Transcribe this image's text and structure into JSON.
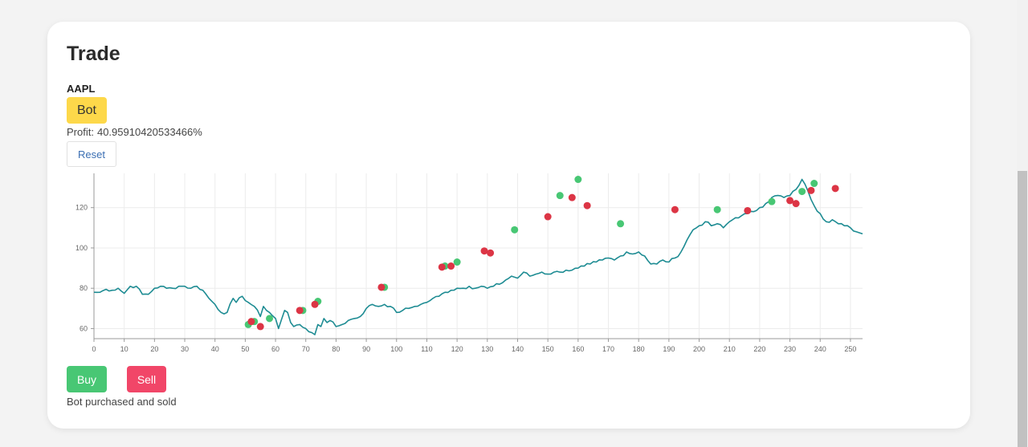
{
  "card": {
    "title": "Trade",
    "ticker": "AAPL",
    "badge_label": "Bot",
    "profit_label": "Profit:",
    "profit_value": "40.95910420533466%",
    "reset_label": "Reset",
    "buy_label": "Buy",
    "sell_label": "Sell",
    "status_text": "Bot purchased and sold"
  },
  "colors": {
    "line": "#1e8c93",
    "buy_marker": "#48c774",
    "sell_marker": "#dc3545",
    "badge": "#fdd84a",
    "buy_button": "#48c774",
    "sell_button": "#f14668"
  },
  "chart_data": {
    "type": "line",
    "xlim": [
      0,
      254
    ],
    "ylim": [
      55,
      137
    ],
    "x_ticks": [
      0,
      10,
      20,
      30,
      40,
      50,
      60,
      70,
      80,
      90,
      100,
      110,
      120,
      130,
      140,
      150,
      160,
      170,
      180,
      190,
      200,
      210,
      220,
      230,
      240,
      250
    ],
    "y_ticks": [
      60,
      80,
      100,
      120
    ],
    "grid": true,
    "anchors": [
      [
        0,
        78
      ],
      [
        2,
        78
      ],
      [
        4,
        79.5
      ],
      [
        6,
        79
      ],
      [
        8,
        80
      ],
      [
        10,
        77.5
      ],
      [
        12,
        81
      ],
      [
        14,
        81
      ],
      [
        16,
        77
      ],
      [
        18,
        77
      ],
      [
        20,
        80
      ],
      [
        22,
        81
      ],
      [
        24,
        80
      ],
      [
        26,
        80
      ],
      [
        28,
        81
      ],
      [
        30,
        81
      ],
      [
        32,
        80
      ],
      [
        34,
        81
      ],
      [
        36,
        79
      ],
      [
        38,
        75
      ],
      [
        40,
        72
      ],
      [
        42,
        68
      ],
      [
        44,
        68
      ],
      [
        46,
        75
      ],
      [
        47,
        73
      ],
      [
        49,
        76
      ],
      [
        51,
        73
      ],
      [
        53,
        71
      ],
      [
        55,
        66
      ],
      [
        56,
        71
      ],
      [
        58,
        68
      ],
      [
        60,
        65
      ],
      [
        61,
        60
      ],
      [
        63,
        69
      ],
      [
        64,
        68
      ],
      [
        65,
        63
      ],
      [
        66,
        61
      ],
      [
        68,
        62
      ],
      [
        70,
        60
      ],
      [
        72,
        58
      ],
      [
        73,
        57
      ],
      [
        74,
        62
      ],
      [
        75,
        61
      ],
      [
        76,
        65
      ],
      [
        77,
        63
      ],
      [
        78,
        64
      ],
      [
        80,
        61
      ],
      [
        82,
        62
      ],
      [
        84,
        64
      ],
      [
        86,
        65
      ],
      [
        88,
        66
      ],
      [
        90,
        70
      ],
      [
        92,
        72
      ],
      [
        94,
        71
      ],
      [
        96,
        72
      ],
      [
        98,
        71
      ],
      [
        100,
        68
      ],
      [
        102,
        69
      ],
      [
        104,
        70
      ],
      [
        106,
        71
      ],
      [
        108,
        72
      ],
      [
        110,
        73
      ],
      [
        112,
        75
      ],
      [
        114,
        76
      ],
      [
        116,
        78
      ],
      [
        118,
        79
      ],
      [
        120,
        80
      ],
      [
        122,
        80
      ],
      [
        124,
        81
      ],
      [
        126,
        80
      ],
      [
        128,
        81
      ],
      [
        130,
        80
      ],
      [
        132,
        81
      ],
      [
        134,
        82
      ],
      [
        136,
        84
      ],
      [
        138,
        86
      ],
      [
        140,
        85
      ],
      [
        142,
        88
      ],
      [
        144,
        86
      ],
      [
        146,
        87
      ],
      [
        148,
        88
      ],
      [
        150,
        87
      ],
      [
        152,
        88
      ],
      [
        154,
        88
      ],
      [
        156,
        89
      ],
      [
        158,
        89
      ],
      [
        160,
        90
      ],
      [
        162,
        91
      ],
      [
        164,
        92
      ],
      [
        166,
        93
      ],
      [
        168,
        94
      ],
      [
        170,
        95
      ],
      [
        172,
        94
      ],
      [
        174,
        96
      ],
      [
        176,
        98
      ],
      [
        178,
        97
      ],
      [
        180,
        98
      ],
      [
        182,
        96
      ],
      [
        184,
        92
      ],
      [
        186,
        92
      ],
      [
        188,
        94
      ],
      [
        190,
        93
      ],
      [
        192,
        95
      ],
      [
        194,
        98
      ],
      [
        196,
        104
      ],
      [
        198,
        109
      ],
      [
        200,
        111
      ],
      [
        202,
        113
      ],
      [
        204,
        111
      ],
      [
        206,
        112
      ],
      [
        208,
        110
      ],
      [
        210,
        113
      ],
      [
        212,
        115
      ],
      [
        214,
        116
      ],
      [
        216,
        117
      ],
      [
        218,
        118
      ],
      [
        220,
        120
      ],
      [
        222,
        122
      ],
      [
        224,
        125
      ],
      [
        226,
        126
      ],
      [
        228,
        125
      ],
      [
        230,
        126
      ],
      [
        232,
        129
      ],
      [
        234,
        134
      ],
      [
        236,
        128
      ],
      [
        238,
        121
      ],
      [
        240,
        117
      ],
      [
        242,
        113
      ],
      [
        244,
        114
      ],
      [
        246,
        112
      ],
      [
        248,
        111
      ],
      [
        250,
        110
      ],
      [
        252,
        108
      ],
      [
        254,
        107
      ]
    ],
    "buy_points": [
      [
        51,
        62
      ],
      [
        53,
        63.5
      ],
      [
        58,
        65
      ],
      [
        69,
        69
      ],
      [
        74,
        73.5
      ],
      [
        96,
        80.5
      ],
      [
        116,
        91
      ],
      [
        120,
        93
      ],
      [
        139,
        109
      ],
      [
        154,
        126
      ],
      [
        160,
        134
      ],
      [
        174,
        112
      ],
      [
        206,
        119
      ],
      [
        224,
        123
      ],
      [
        234,
        128
      ],
      [
        238,
        132
      ]
    ],
    "sell_points": [
      [
        52,
        63.5
      ],
      [
        55,
        61
      ],
      [
        68,
        69
      ],
      [
        73,
        72
      ],
      [
        95,
        80.5
      ],
      [
        115,
        90.5
      ],
      [
        118,
        91
      ],
      [
        129,
        98.5
      ],
      [
        131,
        97.5
      ],
      [
        150,
        115.5
      ],
      [
        158,
        125
      ],
      [
        163,
        121
      ],
      [
        192,
        119
      ],
      [
        216,
        118.5
      ],
      [
        230,
        123.5
      ],
      [
        232,
        122
      ],
      [
        237,
        128.5
      ],
      [
        245,
        129.5
      ]
    ]
  }
}
